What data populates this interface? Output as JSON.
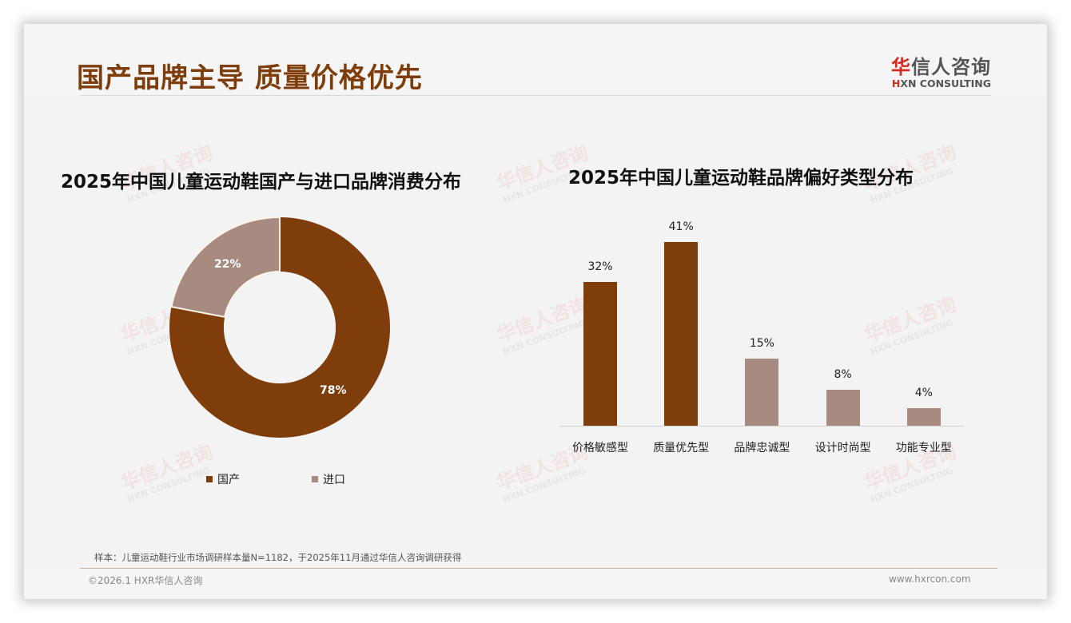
{
  "header": {
    "title": "国产品牌主导 质量价格优先",
    "logo_cn_first": "华",
    "logo_cn_rest": "信人咨询",
    "logo_en_first": "H",
    "logo_en_rest": "XN CONSULTING"
  },
  "watermark": {
    "cn": "华信人咨询",
    "en": "HXN CONSULTING"
  },
  "colors": {
    "primary": "#7f3d0c",
    "secondary": "#a88b80",
    "logo_red": "#d7281e"
  },
  "chart_data": [
    {
      "type": "pie",
      "subtype": "donut",
      "title": "2025年中国儿童运动鞋国产与进口品牌消费分布",
      "categories": [
        "国产",
        "进口"
      ],
      "values": [
        78,
        22
      ],
      "labels": [
        "78%",
        "22%"
      ],
      "colors": [
        "#7f3d0c",
        "#a88b80"
      ],
      "legend_position": "bottom"
    },
    {
      "type": "bar",
      "title": "2025年中国儿童运动鞋品牌偏好类型分布",
      "categories": [
        "价格敏感型",
        "质量优先型",
        "品牌忠诚型",
        "设计时尚型",
        "功能专业型"
      ],
      "values": [
        32,
        41,
        15,
        8,
        4
      ],
      "labels": [
        "32%",
        "41%",
        "15%",
        "8%",
        "4%"
      ],
      "colors": [
        "#7f3d0c",
        "#7f3d0c",
        "#a88b80",
        "#a88b80",
        "#a88b80"
      ],
      "xlabel": "",
      "ylabel": "",
      "grid": false,
      "ylim": [
        0,
        45
      ]
    }
  ],
  "legend": {
    "domestic": "国产",
    "import": "进口"
  },
  "footer": {
    "source": "样本：儿童运动鞋行业市场调研样本量N=1182，于2025年11月通过华信人咨询调研获得",
    "copyright": "©2026.1 HXR华信人咨询",
    "website": "www.hxrcon.com"
  }
}
